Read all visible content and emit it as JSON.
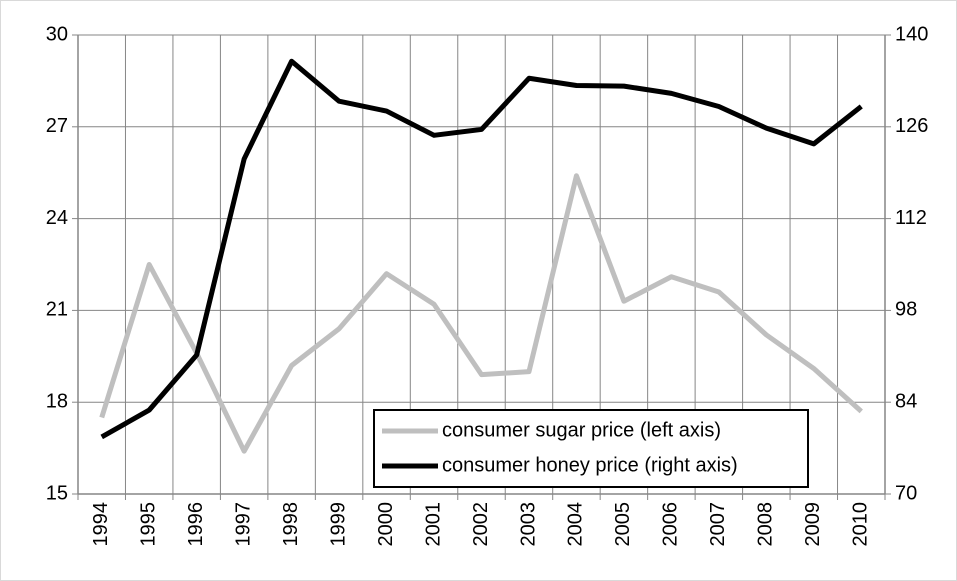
{
  "chart_data": {
    "type": "line",
    "categories": [
      "1994",
      "1995",
      "1996",
      "1997",
      "1998",
      "1999",
      "2000",
      "2001",
      "2002",
      "2003",
      "2004",
      "2005",
      "2006",
      "2007",
      "2008",
      "2009",
      "2010"
    ],
    "series": [
      {
        "name": "consumer sugar price (left axis)",
        "color": "#bfbfbf",
        "axis": "y",
        "values": [
          17.5,
          22.5,
          19.6,
          16.4,
          19.2,
          20.4,
          22.2,
          21.2,
          18.9,
          19.0,
          25.4,
          21.3,
          22.1,
          21.6,
          20.2,
          19.1,
          17.7
        ]
      },
      {
        "name": "consumer honey price (right axis)",
        "color": "#000000",
        "axis": "y2",
        "values": [
          78.7,
          82.8,
          91.2,
          121.1,
          136.0,
          129.9,
          128.4,
          124.7,
          125.6,
          133.4,
          132.3,
          132.2,
          131.1,
          129.1,
          125.8,
          123.4,
          129.1
        ]
      }
    ],
    "ylim": [
      15,
      30
    ],
    "yticks": [
      15,
      18,
      21,
      24,
      27,
      30
    ],
    "y2lim": [
      70,
      140
    ],
    "y2ticks": [
      70,
      84,
      98,
      112,
      126,
      140
    ],
    "grid": true,
    "legend": "lower right"
  }
}
